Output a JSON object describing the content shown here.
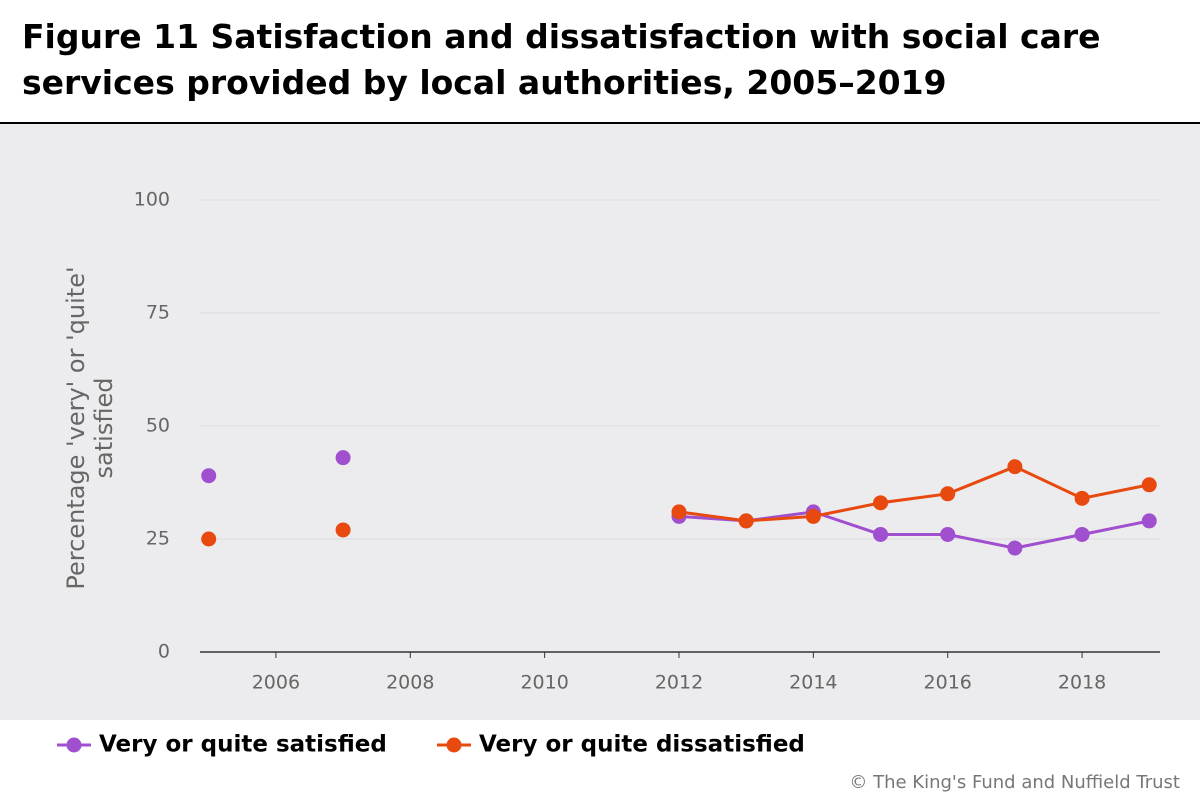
{
  "chart_data": {
    "type": "line",
    "title": "Figure 11 Satisfaction and dissatisfaction with social care services provided by local authorities, 2005–2019",
    "y_label": "Percentage 'very' or 'quite' satisfied",
    "source": "© The King's Fund and Nuffield Trust",
    "x": [
      2005,
      2006,
      2007,
      2008,
      2009,
      2010,
      2011,
      2012,
      2013,
      2014,
      2015,
      2016,
      2017,
      2018,
      2019
    ],
    "series": [
      {
        "name": "Very or quite satisfied",
        "color": "#a04fcf",
        "values": [
          39,
          null,
          43,
          null,
          null,
          null,
          null,
          30,
          29,
          31,
          26,
          26,
          23,
          26,
          29
        ]
      },
      {
        "name": "Very or quite dissatisfied",
        "color": "#e8490f",
        "values": [
          25,
          null,
          27,
          null,
          null,
          null,
          null,
          31,
          29,
          30,
          33,
          35,
          41,
          34,
          37
        ]
      }
    ],
    "xlim": [
      2004.87,
      2019.16
    ],
    "xticks": [
      2006,
      2008,
      2010,
      2012,
      2014,
      2016,
      2018
    ],
    "ylim": [
      0,
      100
    ],
    "yticks": [
      0,
      25,
      50,
      75,
      100
    ],
    "grid": true
  }
}
